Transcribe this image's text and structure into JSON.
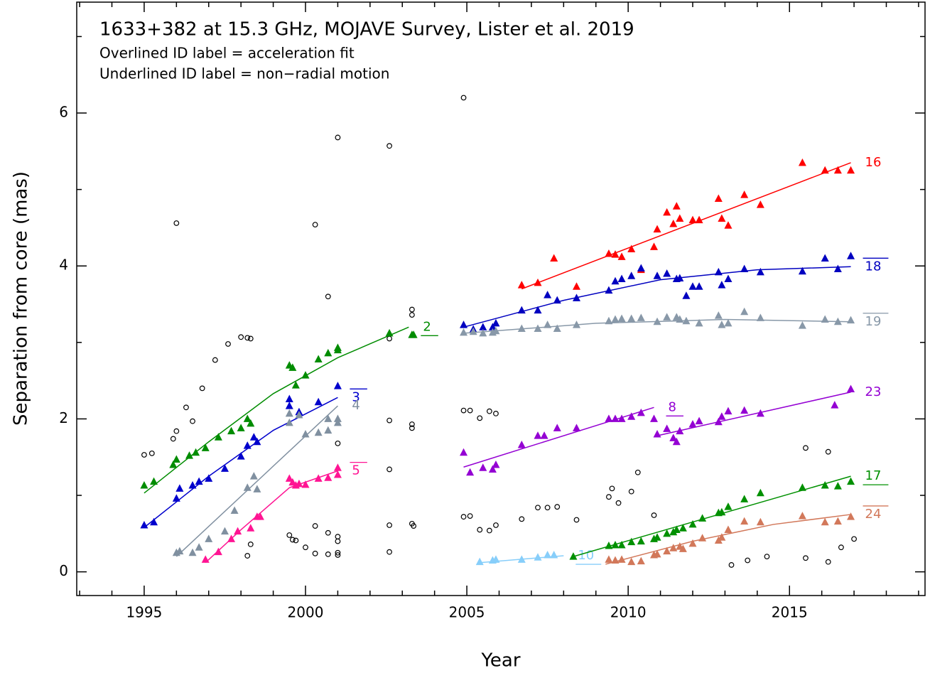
{
  "chart_data": {
    "type": "scatter",
    "title": "1633+382 at 15.3 GHz, MOJAVE Survey, Lister et al. 2019",
    "subtitle": [
      "Overlined ID label = acceleration fit",
      "Underlined ID label = non−radial motion"
    ],
    "x_label": "Year",
    "y_label": "Separation from core (mas)",
    "xlim": [
      1992.91,
      2019.2
    ],
    "ylim": [
      -0.31,
      7.45
    ],
    "xticks": [
      1995,
      2000,
      2005,
      2010,
      2015
    ],
    "xminorticks": [
      1993,
      1994,
      1996,
      1997,
      1998,
      1999,
      2001,
      2002,
      2003,
      2004,
      2006,
      2007,
      2008,
      2009,
      2011,
      2012,
      2013,
      2014,
      2016,
      2017,
      2018,
      2019
    ],
    "yticks": [
      0,
      2,
      4,
      6
    ],
    "yminorticks": [
      1,
      3,
      5,
      7
    ],
    "other_points": {
      "color": "#000000",
      "x": [
        1995.0,
        1995.24,
        1995.9,
        1996.0,
        1996.0,
        1996.3,
        1996.5,
        1996.8,
        1997.2,
        1997.6,
        1998.0,
        1998.2,
        1998.3,
        1998.2,
        1998.3,
        1999.5,
        1999.6,
        1999.7,
        2000.0,
        2000.3,
        2000.3,
        2000.3,
        2000.7,
        2000.7,
        2000.7,
        2001.0,
        2001.0,
        2001.0,
        2001.0,
        2001.0,
        2001.0,
        2002.6,
        2002.6,
        2002.6,
        2002.6,
        2002.6,
        2002.6,
        2003.3,
        2003.3,
        2003.3,
        2003.3,
        2003.3,
        2003.35,
        2004.9,
        2004.9,
        2005.1,
        2005.4,
        2005.7,
        2005.9,
        2004.9,
        2005.1,
        2005.4,
        2005.7,
        2005.9,
        2006.7,
        2007.2,
        2007.5,
        2007.8,
        2008.4,
        2009.4,
        2009.5,
        2009.7,
        2010.1,
        2010.3,
        2010.8,
        2013.2,
        2013.7,
        2014.3,
        2015.5,
        2015.5,
        2016.2,
        2016.2,
        2016.6,
        2017.0
      ],
      "y": [
        1.53,
        1.55,
        1.74,
        1.84,
        4.56,
        2.15,
        1.97,
        2.4,
        2.77,
        2.98,
        3.07,
        3.06,
        3.05,
        0.21,
        0.36,
        0.48,
        0.42,
        0.41,
        0.32,
        0.6,
        0.24,
        4.54,
        0.51,
        0.23,
        3.6,
        0.46,
        0.4,
        0.25,
        0.22,
        1.68,
        5.68,
        5.57,
        3.05,
        1.98,
        1.34,
        0.61,
        0.26,
        3.43,
        3.36,
        1.93,
        1.88,
        0.63,
        0.6,
        6.2,
        2.11,
        2.11,
        2.01,
        2.1,
        2.07,
        0.72,
        0.73,
        0.55,
        0.54,
        0.61,
        0.69,
        0.84,
        0.84,
        0.85,
        0.68,
        0.98,
        1.09,
        0.9,
        1.05,
        1.3,
        0.74,
        0.09,
        0.15,
        0.2,
        1.62,
        0.18,
        1.57,
        0.13,
        0.32,
        0.43
      ]
    },
    "series": [
      {
        "name": "2",
        "label_style": "underline",
        "color": "#008c00",
        "x": [
          1995.0,
          1995.3,
          1995.9,
          1996.0,
          1996.4,
          1996.6,
          1996.9,
          1997.3,
          1997.7,
          1998.0,
          1998.2,
          1998.3,
          1999.5,
          1999.6,
          1999.7,
          2000.0,
          2000.4,
          2000.7,
          2001.0,
          2001.0,
          2002.6,
          2003.3,
          2003.35
        ],
        "values": [
          1.13,
          1.18,
          1.4,
          1.47,
          1.52,
          1.56,
          1.62,
          1.76,
          1.84,
          1.88,
          2.0,
          1.94,
          2.7,
          2.67,
          2.44,
          2.57,
          2.78,
          2.86,
          2.9,
          2.93,
          3.12,
          3.1,
          3.1
        ],
        "fit": {
          "x": [
            1995.0,
            1997.0,
            1999.0,
            2001.0,
            2003.2
          ],
          "y": [
            1.03,
            1.7,
            2.33,
            2.8,
            3.2
          ]
        }
      },
      {
        "name": "3",
        "label_style": "overline",
        "color": "#0000cc",
        "x": [
          1995.0,
          1995.3,
          1996.0,
          1996.1,
          1996.5,
          1996.7,
          1997.0,
          1997.5,
          1998.0,
          1998.2,
          1998.4,
          1998.5,
          1999.5,
          1999.5,
          1999.8,
          2000.4,
          2001.0
        ],
        "values": [
          0.61,
          0.65,
          0.96,
          1.09,
          1.13,
          1.18,
          1.22,
          1.35,
          1.51,
          1.65,
          1.76,
          1.7,
          2.26,
          2.17,
          2.09,
          2.22,
          2.43
        ],
        "fit": {
          "x": [
            1995.0,
            1997.0,
            1999.0,
            2001.0
          ],
          "y": [
            0.58,
            1.25,
            1.85,
            2.28
          ]
        }
      },
      {
        "name": "4",
        "color": "#8090a0",
        "x": [
          1996.0,
          1996.1,
          1996.5,
          1996.7,
          1997.0,
          1997.5,
          1997.8,
          1998.2,
          1998.4,
          1998.5,
          1999.5,
          1999.5,
          1999.8,
          2000.0,
          2000.4,
          2000.7,
          2000.7,
          2001.0,
          2001.0
        ],
        "values": [
          0.25,
          0.27,
          0.25,
          0.32,
          0.43,
          0.53,
          0.8,
          1.1,
          1.25,
          1.08,
          2.07,
          1.95,
          2.05,
          1.8,
          1.82,
          1.85,
          2.0,
          1.95,
          2.0
        ],
        "fit": {
          "x": [
            1996.0,
            2001.0
          ],
          "y": [
            0.2,
            2.17
          ]
        }
      },
      {
        "name": "5",
        "label_style": "overline",
        "color": "#ff1493",
        "x": [
          1996.9,
          1997.3,
          1997.7,
          1997.9,
          1998.3,
          1998.5,
          1998.6,
          1999.5,
          1999.6,
          1999.7,
          1999.8,
          2000.0,
          2000.4,
          2000.7,
          2001.0,
          2001.0
        ],
        "values": [
          0.16,
          0.26,
          0.43,
          0.53,
          0.57,
          0.72,
          0.72,
          1.22,
          1.17,
          1.13,
          1.15,
          1.14,
          1.22,
          1.23,
          1.27,
          1.36
        ],
        "fit": {
          "x": [
            1996.9,
            1998.0,
            1999.5,
            2001.0
          ],
          "y": [
            0.12,
            0.55,
            1.1,
            1.32
          ]
        }
      },
      {
        "name": "8",
        "label_style": "underline",
        "color": "#9400d3",
        "x": [
          2004.9,
          2005.1,
          2005.5,
          2005.8,
          2005.9,
          2006.7,
          2007.2,
          2007.4,
          2007.8,
          2008.4,
          2009.4,
          2009.6,
          2009.8,
          2010.1,
          2010.4,
          2010.8
        ],
        "values": [
          1.56,
          1.3,
          1.36,
          1.34,
          1.4,
          1.66,
          1.78,
          1.78,
          1.88,
          1.88,
          2.0,
          2.0,
          2.0,
          2.03,
          2.08,
          2.0
        ],
        "fit": {
          "x": [
            2004.9,
            2010.8
          ],
          "y": [
            1.37,
            2.15
          ]
        }
      },
      {
        "name": "23",
        "color": "#9400d3",
        "x": [
          2010.9,
          2011.2,
          2011.4,
          2011.5,
          2011.6,
          2012.0,
          2012.2,
          2012.8,
          2012.9,
          2013.1,
          2013.6,
          2014.1,
          2016.4,
          2016.9
        ],
        "values": [
          1.8,
          1.87,
          1.75,
          1.7,
          1.84,
          1.93,
          1.97,
          1.96,
          2.03,
          2.1,
          2.11,
          2.07,
          2.18,
          2.39
        ],
        "fit": {
          "x": [
            2010.9,
            2016.9
          ],
          "y": [
            1.78,
            2.35
          ]
        }
      },
      {
        "name": "10",
        "label_style": "underline",
        "color": "#87cefa",
        "x": [
          2005.4,
          2005.8,
          2005.9,
          2006.7,
          2007.2,
          2007.5,
          2007.7
        ],
        "values": [
          0.13,
          0.15,
          0.16,
          0.16,
          0.19,
          0.22,
          0.22
        ],
        "fit": {
          "x": [
            2005.4,
            2008.0
          ],
          "y": [
            0.12,
            0.21
          ]
        }
      },
      {
        "name": "16",
        "color": "#ff0000",
        "x": [
          2006.7,
          2007.2,
          2007.7,
          2008.4,
          2009.4,
          2009.6,
          2009.8,
          2010.1,
          2010.4,
          2010.8,
          2010.9,
          2011.2,
          2011.4,
          2011.5,
          2011.6,
          2012.0,
          2012.2,
          2012.8,
          2012.9,
          2013.1,
          2013.6,
          2014.1,
          2015.4,
          2016.1,
          2016.5,
          2016.9
        ],
        "values": [
          3.75,
          3.78,
          4.1,
          3.73,
          4.16,
          4.15,
          4.12,
          4.22,
          3.95,
          4.25,
          4.48,
          4.7,
          4.55,
          4.78,
          4.62,
          4.6,
          4.6,
          4.88,
          4.62,
          4.53,
          4.93,
          4.8,
          5.35,
          5.25,
          5.25,
          5.25
        ],
        "fit": {
          "x": [
            2006.7,
            2016.9
          ],
          "y": [
            3.7,
            5.35
          ]
        }
      },
      {
        "name": "18",
        "label_style": "overline",
        "color": "#0000c0",
        "x": [
          2004.9,
          2005.2,
          2005.5,
          2005.8,
          2005.9,
          2006.7,
          2007.2,
          2007.5,
          2007.8,
          2008.4,
          2009.4,
          2009.6,
          2009.8,
          2010.1,
          2010.4,
          2010.9,
          2011.2,
          2011.5,
          2011.6,
          2011.8,
          2012.0,
          2012.2,
          2012.8,
          2012.9,
          2013.1,
          2013.6,
          2014.1,
          2015.4,
          2016.1,
          2016.5,
          2016.9
        ],
        "values": [
          3.23,
          3.17,
          3.2,
          3.2,
          3.25,
          3.42,
          3.42,
          3.62,
          3.55,
          3.58,
          3.68,
          3.8,
          3.83,
          3.87,
          3.97,
          3.87,
          3.9,
          3.83,
          3.84,
          3.61,
          3.73,
          3.73,
          3.92,
          3.75,
          3.83,
          3.96,
          3.92,
          3.93,
          4.1,
          3.96,
          4.13
        ],
        "fit": {
          "x": [
            2004.9,
            2008.0,
            2011.0,
            2014.0,
            2016.9
          ],
          "y": [
            3.2,
            3.55,
            3.82,
            3.95,
            3.99
          ]
        }
      },
      {
        "name": "19",
        "label_style": "overline",
        "color": "#8898a8",
        "x": [
          2004.9,
          2005.2,
          2005.5,
          2005.8,
          2005.9,
          2006.7,
          2007.2,
          2007.5,
          2007.8,
          2008.4,
          2009.4,
          2009.6,
          2009.8,
          2010.1,
          2010.4,
          2010.9,
          2011.2,
          2011.5,
          2011.6,
          2011.8,
          2012.2,
          2012.8,
          2012.9,
          2013.1,
          2013.6,
          2014.1,
          2015.4,
          2016.1,
          2016.5,
          2016.9
        ],
        "values": [
          3.13,
          3.14,
          3.12,
          3.13,
          3.15,
          3.18,
          3.18,
          3.23,
          3.18,
          3.23,
          3.28,
          3.3,
          3.31,
          3.31,
          3.32,
          3.27,
          3.33,
          3.33,
          3.3,
          3.28,
          3.25,
          3.35,
          3.23,
          3.25,
          3.4,
          3.32,
          3.22,
          3.3,
          3.27,
          3.29
        ],
        "fit": {
          "x": [
            2004.9,
            2009.0,
            2013.0,
            2016.9
          ],
          "y": [
            3.12,
            3.25,
            3.3,
            3.27
          ]
        }
      },
      {
        "name": "17",
        "label_style": "underline",
        "color": "#009000",
        "x": [
          2008.3,
          2009.4,
          2009.6,
          2009.8,
          2010.1,
          2010.4,
          2010.8,
          2010.9,
          2011.2,
          2011.4,
          2011.5,
          2011.7,
          2012.0,
          2012.3,
          2012.8,
          2012.9,
          2013.1,
          2013.6,
          2014.1,
          2015.4,
          2016.1,
          2016.5,
          2016.9
        ],
        "values": [
          0.2,
          0.34,
          0.35,
          0.35,
          0.39,
          0.4,
          0.43,
          0.45,
          0.5,
          0.52,
          0.55,
          0.57,
          0.62,
          0.7,
          0.77,
          0.78,
          0.85,
          0.95,
          1.03,
          1.1,
          1.13,
          1.12,
          1.18
        ],
        "fit": {
          "x": [
            2008.3,
            2016.9
          ],
          "y": [
            0.2,
            1.25
          ]
        }
      },
      {
        "name": "24",
        "label_style": "overline",
        "color": "#d2785a",
        "x": [
          2009.4,
          2009.6,
          2009.8,
          2010.1,
          2010.4,
          2010.8,
          2010.9,
          2011.2,
          2011.4,
          2011.6,
          2011.7,
          2012.0,
          2012.3,
          2012.8,
          2012.9,
          2013.1,
          2013.6,
          2014.1,
          2015.4,
          2016.1,
          2016.5,
          2016.9
        ],
        "values": [
          0.16,
          0.15,
          0.16,
          0.13,
          0.14,
          0.22,
          0.23,
          0.27,
          0.31,
          0.33,
          0.3,
          0.37,
          0.44,
          0.41,
          0.45,
          0.55,
          0.66,
          0.65,
          0.73,
          0.65,
          0.66,
          0.72
        ],
        "fit": {
          "x": [
            2009.3,
            2012.0,
            2014.5,
            2016.9
          ],
          "y": [
            0.1,
            0.4,
            0.62,
            0.75
          ]
        }
      }
    ]
  }
}
